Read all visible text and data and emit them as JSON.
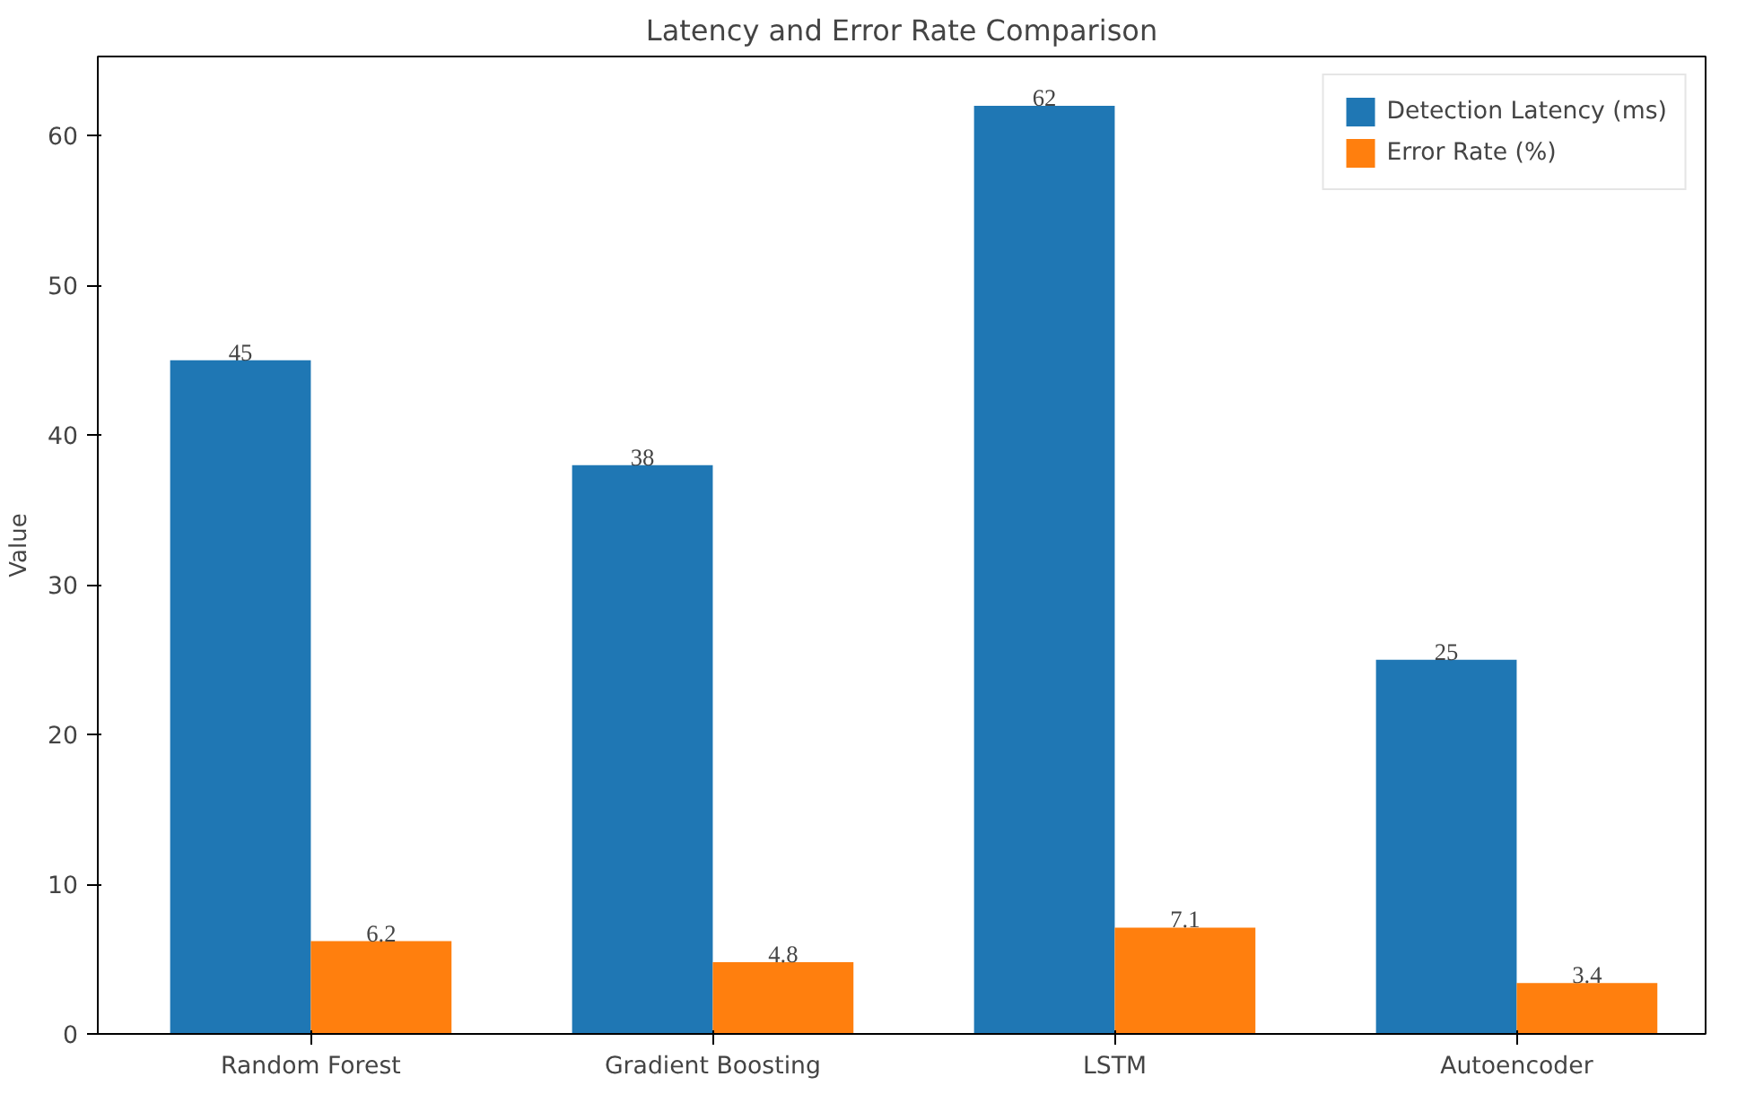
{
  "chart_data": {
    "type": "bar",
    "title": "Latency and Error Rate Comparison",
    "ylabel": "Value",
    "categories": [
      "Random Forest",
      "Gradient Boosting",
      "LSTM",
      "Autoencoder"
    ],
    "series": [
      {
        "name": "Detection Latency (ms)",
        "color": "#1f77b4",
        "values": [
          45,
          38,
          62,
          25
        ]
      },
      {
        "name": "Error Rate (%)",
        "color": "#ff7f0e",
        "values": [
          6.2,
          4.8,
          7.1,
          3.4
        ]
      }
    ],
    "ylim": [
      0,
      65.3
    ],
    "yticks": [
      0,
      10,
      20,
      30,
      40,
      50,
      60
    ],
    "grid": false,
    "legend": "top right",
    "data_labels": true
  }
}
